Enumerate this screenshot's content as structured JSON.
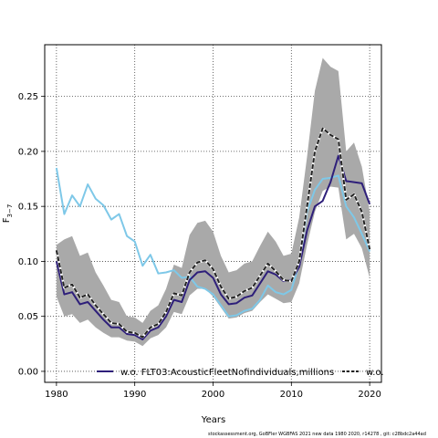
{
  "chart_data": {
    "type": "line",
    "xlabel": "Years",
    "ylabel": "F",
    "ylabel_sub": "3−7",
    "xlim": [
      1978.5,
      2021.5
    ],
    "ylim": [
      -0.01,
      0.297
    ],
    "x_ticks": [
      1980,
      1990,
      2000,
      2010,
      2020
    ],
    "y_ticks": [
      0.0,
      0.05,
      0.1,
      0.15,
      0.2,
      0.25
    ],
    "y_tick_labels": [
      "0.00",
      "0.05",
      "0.10",
      "0.15",
      "0.20",
      "0.25"
    ],
    "grid": true,
    "legend_position": "bottom",
    "x": [
      1980,
      1981,
      1982,
      1983,
      1984,
      1985,
      1986,
      1987,
      1988,
      1989,
      1990,
      1991,
      1992,
      1993,
      1994,
      1995,
      1996,
      1997,
      1998,
      1999,
      2000,
      2001,
      2002,
      2003,
      2004,
      2005,
      2006,
      2007,
      2008,
      2009,
      2010,
      2011,
      2012,
      2013,
      2014,
      2015,
      2016,
      2017,
      2018,
      2019,
      2020
    ],
    "band": {
      "color": "#a9a9a9",
      "upper": [
        0.115,
        0.12,
        0.123,
        0.105,
        0.108,
        0.09,
        0.078,
        0.065,
        0.063,
        0.05,
        0.049,
        0.044,
        0.055,
        0.06,
        0.075,
        0.097,
        0.094,
        0.124,
        0.135,
        0.137,
        0.127,
        0.105,
        0.09,
        0.092,
        0.098,
        0.1,
        0.114,
        0.127,
        0.118,
        0.105,
        0.107,
        0.14,
        0.195,
        0.255,
        0.285,
        0.277,
        0.273,
        0.2,
        0.208,
        0.186,
        0.145
      ],
      "lower": [
        0.068,
        0.05,
        0.052,
        0.044,
        0.047,
        0.04,
        0.035,
        0.031,
        0.031,
        0.028,
        0.027,
        0.023,
        0.03,
        0.033,
        0.04,
        0.054,
        0.052,
        0.069,
        0.075,
        0.075,
        0.068,
        0.058,
        0.048,
        0.049,
        0.053,
        0.055,
        0.063,
        0.07,
        0.066,
        0.062,
        0.063,
        0.08,
        0.115,
        0.145,
        0.164,
        0.168,
        0.167,
        0.12,
        0.125,
        0.112,
        0.085
      ]
    },
    "series": [
      {
        "name": "w.o. FLT03:AcousticFleetNofindividuals,millions",
        "color": "#2e1f7a",
        "style": "solid",
        "values": [
          0.1,
          0.07,
          0.072,
          0.061,
          0.063,
          0.055,
          0.047,
          0.04,
          0.04,
          0.034,
          0.033,
          0.029,
          0.037,
          0.04,
          0.05,
          0.065,
          0.063,
          0.083,
          0.09,
          0.091,
          0.085,
          0.07,
          0.061,
          0.062,
          0.067,
          0.069,
          0.08,
          0.091,
          0.088,
          0.082,
          0.083,
          0.095,
          0.128,
          0.15,
          0.155,
          0.172,
          0.196,
          0.173,
          0.172,
          0.171,
          0.152
        ]
      },
      {
        "name": "w.o.",
        "color": "#222222",
        "style": "dashed",
        "values": [
          0.11,
          0.076,
          0.079,
          0.067,
          0.07,
          0.06,
          0.052,
          0.044,
          0.043,
          0.036,
          0.035,
          0.031,
          0.04,
          0.043,
          0.054,
          0.071,
          0.069,
          0.09,
          0.099,
          0.101,
          0.093,
          0.077,
          0.066,
          0.068,
          0.073,
          0.076,
          0.087,
          0.098,
          0.091,
          0.083,
          0.082,
          0.1,
          0.15,
          0.2,
          0.221,
          0.215,
          0.211,
          0.156,
          0.161,
          0.145,
          0.111
        ]
      },
      {
        "name": "",
        "color": "#7ec8e8",
        "style": "solid",
        "values": [
          0.185,
          0.143,
          0.16,
          0.15,
          0.17,
          0.157,
          0.151,
          0.138,
          0.143,
          0.123,
          0.118,
          0.096,
          0.106,
          0.089,
          0.09,
          0.092,
          0.085,
          0.086,
          0.077,
          0.075,
          0.07,
          0.06,
          0.05,
          0.051,
          0.055,
          0.057,
          0.065,
          0.078,
          0.072,
          0.07,
          0.074,
          0.098,
          0.145,
          0.165,
          0.175,
          0.176,
          0.178,
          0.15,
          0.14,
          0.125,
          0.109
        ]
      }
    ]
  },
  "footer": "stockassessment.org, GoBFler WGBFAS 2021 new data 1980 2020, r14278 , git: c28bdc2a44ad"
}
